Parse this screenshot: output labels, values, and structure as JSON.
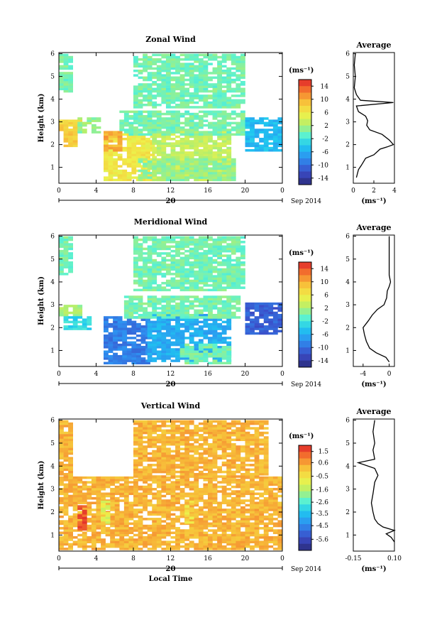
{
  "figure": {
    "date_label": "Sep 2014",
    "day_label": "20",
    "local_time_label": "Local Time",
    "unit_label": "(ms⁻¹)"
  },
  "chart_data": [
    {
      "type": "heatmap",
      "title": "Zonal Wind",
      "ylabel": "Height (km)",
      "xlabel": "",
      "x_ticks": [
        "0",
        "4",
        "8",
        "12",
        "16",
        "20",
        "0"
      ],
      "xlim": [
        0,
        24
      ],
      "ylim": [
        0.3,
        6.05
      ],
      "y_ticks": [
        1,
        2,
        3,
        4,
        5,
        6
      ],
      "colorbar": {
        "unit": "(ms⁻¹)",
        "ticks": [
          14,
          10,
          6,
          2,
          -2,
          -6,
          -10,
          -14
        ],
        "range": [
          -16,
          16
        ]
      },
      "regions": [
        {
          "x": [
            0.0,
            1.3
          ],
          "y": [
            4.3,
            6.0
          ],
          "value": 0
        },
        {
          "x": [
            0.0,
            2.5
          ],
          "y": [
            2.6,
            3.1
          ],
          "value": 8
        },
        {
          "x": [
            0.5,
            2.0
          ],
          "y": [
            1.9,
            2.7
          ],
          "value": 8
        },
        {
          "x": [
            2.0,
            4.5
          ],
          "y": [
            2.5,
            3.2
          ],
          "value": 1
        },
        {
          "x": [
            4.8,
            10.0
          ],
          "y": [
            0.4,
            2.5
          ],
          "value": 6
        },
        {
          "x": [
            4.8,
            6.8
          ],
          "y": [
            1.7,
            2.6
          ],
          "value": 10
        },
        {
          "x": [
            10.0,
            18.5
          ],
          "y": [
            0.4,
            2.6
          ],
          "value": 3
        },
        {
          "x": [
            6.5,
            20.0
          ],
          "y": [
            2.4,
            3.5
          ],
          "value": 0
        },
        {
          "x": [
            8.0,
            20.0
          ],
          "y": [
            3.6,
            6.0
          ],
          "value": 0
        },
        {
          "x": [
            20.0,
            24.0
          ],
          "y": [
            1.7,
            3.2
          ],
          "value": -5
        },
        {
          "x": [
            8.5,
            19.0
          ],
          "y": [
            0.4,
            1.4
          ],
          "value": 1
        }
      ],
      "profile": {
        "title": "Average",
        "xlabel": "(ms⁻¹)",
        "x_ticks": [
          0,
          2,
          4
        ],
        "xlim": [
          0,
          4
        ],
        "y_ticks": [
          1,
          2,
          3,
          4,
          5,
          6
        ],
        "ylim": [
          0.3,
          6.05
        ],
        "points": [
          [
            0.3,
            0.55
          ],
          [
            0.5,
            0.9
          ],
          [
            0.8,
            1.1
          ],
          [
            1.2,
            1.4
          ],
          [
            2.0,
            1.55
          ],
          [
            2.6,
            1.8
          ],
          [
            3.3,
            1.9
          ],
          [
            3.9,
            2.0
          ],
          [
            3.5,
            2.2
          ],
          [
            2.8,
            2.45
          ],
          [
            1.6,
            2.65
          ],
          [
            1.3,
            2.85
          ],
          [
            1.4,
            3.05
          ],
          [
            1.2,
            3.25
          ],
          [
            0.5,
            3.45
          ],
          [
            0.3,
            3.7
          ],
          [
            3.9,
            3.85
          ],
          [
            0.7,
            3.95
          ],
          [
            0.3,
            4.2
          ],
          [
            0.1,
            4.5
          ],
          [
            0.2,
            5.0
          ],
          [
            0.1,
            5.5
          ],
          [
            0.2,
            6.0
          ]
        ]
      }
    },
    {
      "type": "heatmap",
      "title": "Meridional Wind",
      "ylabel": "Height (km)",
      "xlabel": "",
      "x_ticks": [
        "0",
        "4",
        "8",
        "12",
        "16",
        "20",
        "0"
      ],
      "xlim": [
        0,
        24
      ],
      "ylim": [
        0.3,
        6.05
      ],
      "y_ticks": [
        1,
        2,
        3,
        4,
        5,
        6
      ],
      "colorbar": {
        "unit": "(ms⁻¹)",
        "ticks": [
          14,
          10,
          6,
          2,
          -2,
          -6,
          -10,
          -14
        ],
        "range": [
          -16,
          16
        ]
      },
      "regions": [
        {
          "x": [
            0.0,
            1.3
          ],
          "y": [
            4.3,
            6.0
          ],
          "value": 0
        },
        {
          "x": [
            0.0,
            2.5
          ],
          "y": [
            2.5,
            3.0
          ],
          "value": 2
        },
        {
          "x": [
            0.5,
            3.5
          ],
          "y": [
            1.9,
            2.5
          ],
          "value": -3
        },
        {
          "x": [
            4.8,
            9.5
          ],
          "y": [
            0.4,
            2.5
          ],
          "value": -9
        },
        {
          "x": [
            9.5,
            18.5
          ],
          "y": [
            0.5,
            2.6
          ],
          "value": -6
        },
        {
          "x": [
            7.0,
            19.5
          ],
          "y": [
            2.4,
            3.4
          ],
          "value": 0
        },
        {
          "x": [
            8.0,
            20.0
          ],
          "y": [
            3.6,
            6.0
          ],
          "value": 0
        },
        {
          "x": [
            20.0,
            24.0
          ],
          "y": [
            1.7,
            3.1
          ],
          "value": -11
        },
        {
          "x": [
            13.0,
            18.5
          ],
          "y": [
            0.4,
            1.3
          ],
          "value": 0
        }
      ],
      "profile": {
        "title": "Average",
        "xlabel": "(ms⁻¹)",
        "x_ticks": [
          -4,
          0
        ],
        "xlim": [
          -5.5,
          0.8
        ],
        "y_ticks": [
          1,
          2,
          3,
          4,
          5,
          6
        ],
        "ylim": [
          0.3,
          6.05
        ],
        "points": [
          [
            0.0,
            0.5
          ],
          [
            -0.5,
            0.7
          ],
          [
            -2.0,
            0.9
          ],
          [
            -3.0,
            1.1
          ],
          [
            -3.5,
            1.4
          ],
          [
            -3.8,
            1.7
          ],
          [
            -4.0,
            2.0
          ],
          [
            -3.2,
            2.3
          ],
          [
            -2.6,
            2.55
          ],
          [
            -1.8,
            2.8
          ],
          [
            -0.8,
            3.0
          ],
          [
            -0.4,
            3.3
          ],
          [
            -0.3,
            3.6
          ],
          [
            0.0,
            3.8
          ],
          [
            0.2,
            4.0
          ],
          [
            0.0,
            4.3
          ],
          [
            0.0,
            5.0
          ],
          [
            0.0,
            6.0
          ]
        ]
      }
    },
    {
      "type": "heatmap",
      "title": "Vertical Wind",
      "ylabel": "Height (km)",
      "xlabel": "Local Time",
      "x_ticks": [
        "0",
        "4",
        "8",
        "12",
        "16",
        "20",
        "0"
      ],
      "xlim": [
        0,
        24
      ],
      "ylim": [
        0.3,
        6.05
      ],
      "y_ticks": [
        1,
        2,
        3,
        4,
        5,
        6
      ],
      "colorbar": {
        "unit": "(ms⁻¹)",
        "ticks": [
          1.5,
          0.6,
          -0.5,
          -1.6,
          -2.6,
          -3.5,
          -4.5,
          -5.6
        ],
        "range": [
          -6.5,
          2.0
        ]
      },
      "regions": [
        {
          "x": [
            0.0,
            24.0
          ],
          "y": [
            0.35,
            3.5
          ],
          "value": 0.3
        },
        {
          "x": [
            0.0,
            1.5
          ],
          "y": [
            3.5,
            6.0
          ],
          "value": 0.3
        },
        {
          "x": [
            8.0,
            22.5
          ],
          "y": [
            3.5,
            6.0
          ],
          "value": 0.3
        },
        {
          "x": [
            2.0,
            2.8
          ],
          "y": [
            1.2,
            2.3
          ],
          "value": 1.5
        },
        {
          "x": [
            4.5,
            5.5
          ],
          "y": [
            1.5,
            2.5
          ],
          "value": -1.0
        },
        {
          "x": [
            13.5,
            14.5
          ],
          "y": [
            1.5,
            2.5
          ],
          "value": -0.5
        }
      ],
      "profile": {
        "title": "Average",
        "xlabel": "(ms⁻¹)",
        "x_ticks": [
          "-0.15",
          "0.10"
        ],
        "xlim": [
          -0.15,
          0.1
        ],
        "y_ticks": [
          1,
          2,
          3,
          4,
          5,
          6
        ],
        "ylim": [
          0.3,
          6.05
        ],
        "points": [
          [
            0.1,
            0.7
          ],
          [
            0.08,
            0.9
          ],
          [
            0.05,
            1.05
          ],
          [
            0.1,
            1.2
          ],
          [
            0.03,
            1.35
          ],
          [
            0.0,
            1.5
          ],
          [
            -0.02,
            1.7
          ],
          [
            -0.03,
            2.0
          ],
          [
            -0.04,
            2.4
          ],
          [
            -0.03,
            2.8
          ],
          [
            -0.02,
            3.3
          ],
          [
            0.0,
            3.6
          ],
          [
            -0.02,
            3.9
          ],
          [
            -0.12,
            4.15
          ],
          [
            -0.02,
            4.3
          ],
          [
            -0.03,
            4.7
          ],
          [
            -0.02,
            5.0
          ],
          [
            -0.03,
            5.5
          ],
          [
            -0.02,
            6.0
          ]
        ]
      }
    }
  ]
}
